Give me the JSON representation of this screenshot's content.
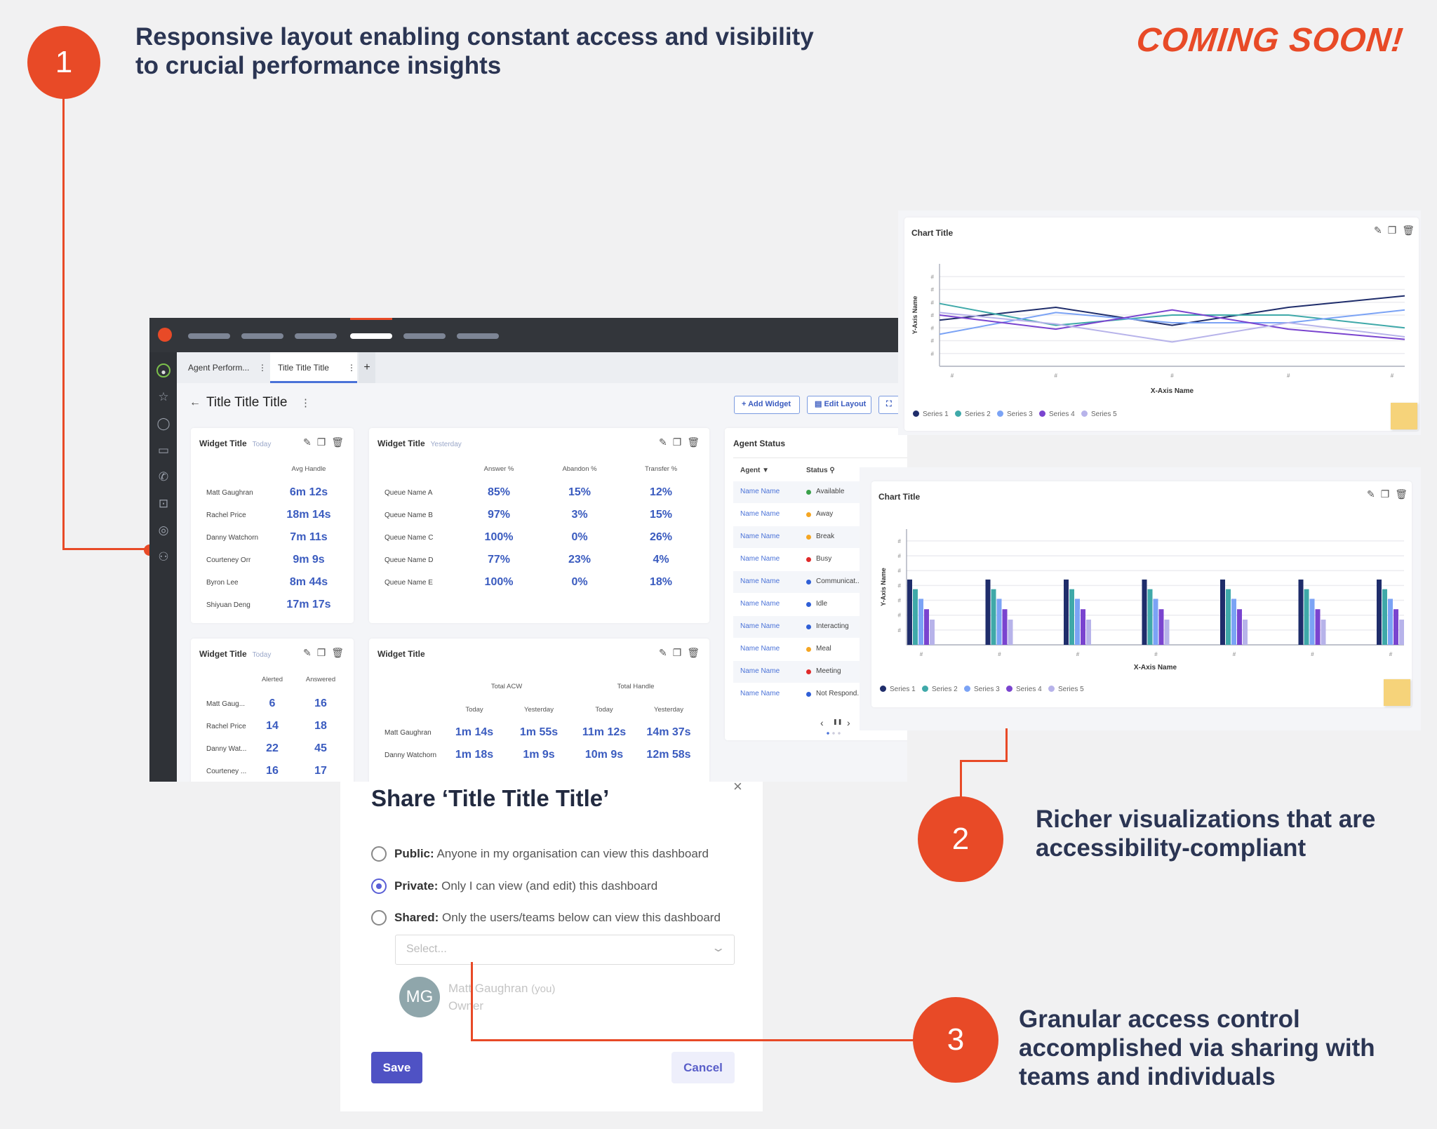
{
  "callouts": [
    {
      "number": "1",
      "text_line1": "Responsive layout enabling constant access and visibility",
      "text_line2": "to crucial performance insights"
    },
    {
      "number": "2",
      "text_line1": "Richer visualizations that are",
      "text_line2": "accessibility-compliant"
    },
    {
      "number": "3",
      "text_line1": "Granular access control",
      "text_line2": "accomplished via sharing with",
      "text_line3": "teams and individuals"
    }
  ],
  "coming_soon": "COMING SOON!",
  "colors": {
    "accent": "#e84a27",
    "value_blue": "#3a5bbf",
    "primary_button": "#4f52c4"
  },
  "app": {
    "sidebar_icons": [
      "avatar-icon",
      "star-icon",
      "chat-icon",
      "video-icon",
      "phone-icon",
      "inbox-icon",
      "lifebuoy-icon",
      "agent-icon"
    ],
    "tabs": [
      {
        "label": "Agent Perform...",
        "active": false
      },
      {
        "label": "Title Title Title",
        "active": true
      }
    ],
    "add_tab": "+",
    "page_title": "Title Title Title",
    "back": "←",
    "kebab": "⋮",
    "toolbar": {
      "add_widget": "Add Widget",
      "edit_layout": "Edit Layout"
    },
    "widget1": {
      "title": "Widget Title",
      "sub": "Today",
      "columns": [
        "Avg Handle"
      ],
      "rows": [
        [
          "Matt Gaughran",
          "6m 12s"
        ],
        [
          "Rachel Price",
          "18m 14s"
        ],
        [
          "Danny Watchorn",
          "7m 11s"
        ],
        [
          "Courteney Orr",
          "9m 9s"
        ],
        [
          "Byron Lee",
          "8m 44s"
        ],
        [
          "Shiyuan Deng",
          "17m 17s"
        ]
      ]
    },
    "widget2": {
      "title": "Widget Title",
      "sub": "Yesterday",
      "columns": [
        "Answer %",
        "Abandon %",
        "Transfer %"
      ],
      "rows": [
        [
          "Queue Name A",
          "85%",
          "15%",
          "12%"
        ],
        [
          "Queue Name B",
          "97%",
          "3%",
          "15%"
        ],
        [
          "Queue Name C",
          "100%",
          "0%",
          "26%"
        ],
        [
          "Queue Name D",
          "77%",
          "23%",
          "4%"
        ],
        [
          "Queue Name E",
          "100%",
          "0%",
          "18%"
        ]
      ]
    },
    "widget3": {
      "title": "Widget Title",
      "sub": "Today",
      "columns": [
        "Alerted",
        "Answered"
      ],
      "rows": [
        [
          "Matt Gaug...",
          "6",
          "16"
        ],
        [
          "Rachel Price",
          "14",
          "18"
        ],
        [
          "Danny Wat...",
          "22",
          "45"
        ],
        [
          "Courteney ...",
          "16",
          "17"
        ]
      ]
    },
    "widget4": {
      "title": "Widget Title",
      "groups": [
        "Total ACW",
        "Total Handle"
      ],
      "columns": [
        "Today",
        "Yesterday",
        "Today",
        "Yesterday"
      ],
      "rows": [
        [
          "Matt Gaughran",
          "1m 14s",
          "1m 55s",
          "11m 12s",
          "14m 37s"
        ],
        [
          "Danny Watchorn",
          "1m 18s",
          "1m 9s",
          "10m 9s",
          "12m 58s"
        ]
      ]
    },
    "agent_status": {
      "title": "Agent Status",
      "columns": [
        "Agent",
        "Status"
      ],
      "rows": [
        {
          "name": "Name Name",
          "status": "Available",
          "color": "#3aa04a"
        },
        {
          "name": "Name Name",
          "status": "Away",
          "color": "#f5a623"
        },
        {
          "name": "Name Name",
          "status": "Break",
          "color": "#f5a623"
        },
        {
          "name": "Name Name",
          "status": "Busy",
          "color": "#e02a2a"
        },
        {
          "name": "Name Name",
          "status": "Communicat...",
          "color": "#2f5fd6"
        },
        {
          "name": "Name Name",
          "status": "Idle",
          "color": "#2f5fd6"
        },
        {
          "name": "Name Name",
          "status": "Interacting",
          "color": "#2f5fd6"
        },
        {
          "name": "Name Name",
          "status": "Meal",
          "color": "#f5a623"
        },
        {
          "name": "Name Name",
          "status": "Meeting",
          "color": "#e02a2a"
        },
        {
          "name": "Name Name",
          "status": "Not Respond...",
          "color": "#2f5fd6"
        }
      ],
      "pager": {
        "prev": "‹",
        "pause": "❚❚",
        "next": "›"
      }
    }
  },
  "chart_data": [
    {
      "type": "line",
      "title": "Chart Title",
      "xlabel": "X-Axis Name",
      "ylabel": "Y-Axis Name",
      "x": [
        "#",
        "#",
        "#",
        "#",
        "#"
      ],
      "y_ticks": [
        "#",
        "#",
        "#",
        "#",
        "#",
        "#",
        "#"
      ],
      "ylim": [
        0,
        8
      ],
      "grid": true,
      "legend": "bottom-left",
      "series": [
        {
          "name": "Series 1",
          "color": "#1f2d6b",
          "values": [
            3.6,
            4.6,
            3.2,
            4.6,
            5.5
          ]
        },
        {
          "name": "Series 2",
          "color": "#3fa9a9",
          "values": [
            4.9,
            3.2,
            4.0,
            4.0,
            3.0
          ]
        },
        {
          "name": "Series 3",
          "color": "#7ba3f5",
          "values": [
            2.5,
            4.2,
            3.4,
            3.4,
            4.4
          ]
        },
        {
          "name": "Series 4",
          "color": "#7a44cf",
          "values": [
            4.0,
            2.9,
            4.4,
            2.9,
            2.1
          ]
        },
        {
          "name": "Series 5",
          "color": "#b7b3ea",
          "values": [
            4.2,
            3.3,
            1.9,
            3.4,
            2.3
          ]
        }
      ]
    },
    {
      "type": "bar",
      "title": "Chart Title",
      "xlabel": "X-Axis Name",
      "ylabel": "Y-Axis Name",
      "categories": [
        "#",
        "#",
        "#",
        "#",
        "#",
        "#",
        "#"
      ],
      "y_ticks": [
        "#",
        "#",
        "#",
        "#",
        "#",
        "#",
        "#"
      ],
      "ylim": [
        0,
        7.8
      ],
      "grid": true,
      "legend": "bottom-left",
      "series": [
        {
          "name": "Series 1",
          "color": "#1f2d6b",
          "values": [
            4.4,
            4.4,
            4.4,
            4.4,
            4.4,
            4.4,
            4.4
          ]
        },
        {
          "name": "Series 2",
          "color": "#3fa9a9",
          "values": [
            3.75,
            3.75,
            3.75,
            3.75,
            3.75,
            3.75,
            3.75
          ]
        },
        {
          "name": "Series 3",
          "color": "#7ba3f5",
          "values": [
            3.1,
            3.1,
            3.1,
            3.1,
            3.1,
            3.1,
            3.1
          ]
        },
        {
          "name": "Series 4",
          "color": "#7a44cf",
          "values": [
            2.4,
            2.4,
            2.4,
            2.4,
            2.4,
            2.4,
            2.4
          ]
        },
        {
          "name": "Series 5",
          "color": "#b7b3ea",
          "values": [
            1.7,
            1.7,
            1.7,
            1.7,
            1.7,
            1.7,
            1.7
          ]
        }
      ]
    }
  ],
  "share": {
    "title": "Share ‘Title Title Title’",
    "close": "×",
    "options": [
      {
        "label": "Public:",
        "desc": "Anyone in my organisation can view this dashboard",
        "selected": false
      },
      {
        "label": "Private:",
        "desc": "Only I can view (and edit) this dashboard",
        "selected": true
      },
      {
        "label": "Shared:",
        "desc": "Only the users/teams below can view this dashboard",
        "selected": false
      }
    ],
    "select_placeholder": "Select...",
    "owner": {
      "initials": "MG",
      "name": "Matt Gaughran",
      "you": "(you)",
      "role": "Owner"
    },
    "save": "Save",
    "cancel": "Cancel"
  }
}
